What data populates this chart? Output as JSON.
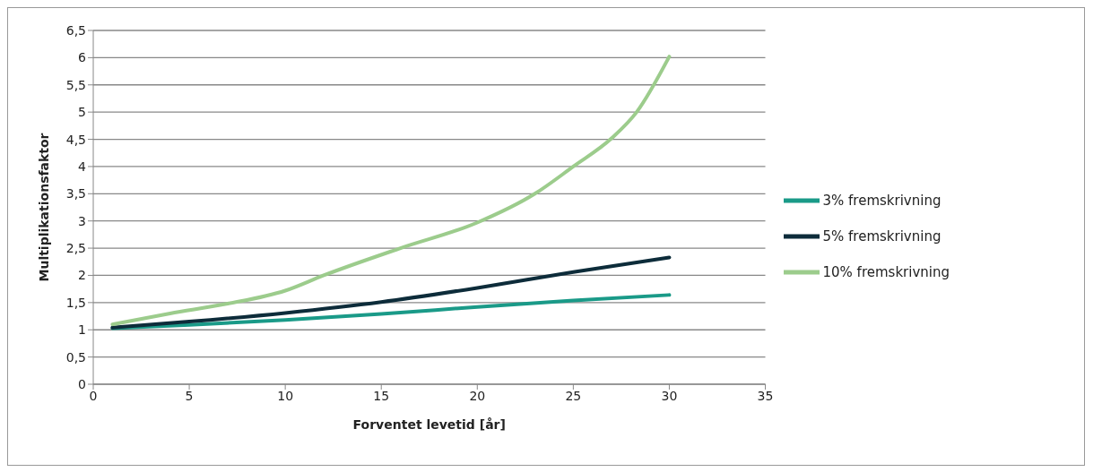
{
  "chart_data": {
    "type": "line",
    "xlabel": "Forventet levetid [år]",
    "ylabel": "Multiplikationsfaktor",
    "xlim": [
      0,
      35
    ],
    "xticks": [
      0,
      5,
      10,
      15,
      20,
      25,
      30,
      35
    ],
    "ylim": [
      0,
      6.5
    ],
    "yticks": [
      0,
      {
        "value": 0.5,
        "label": "0,5"
      },
      1,
      {
        "value": 1.5,
        "label": "1,5"
      },
      2,
      {
        "value": 2.5,
        "label": "2,5"
      },
      3,
      {
        "value": 3.5,
        "label": "3,5"
      },
      4,
      {
        "value": 4.5,
        "label": "4,5"
      },
      5,
      {
        "value": 5.5,
        "label": "5,5"
      },
      6,
      {
        "value": 6.5,
        "label": "6,5"
      }
    ],
    "grid": "y",
    "legend": "right",
    "marker": "none",
    "line_style": "solid",
    "series": [
      {
        "name": "3% fremskrivning",
        "color": "#1a9a88",
        "x": [
          1,
          5,
          10,
          15,
          20,
          25,
          30
        ],
        "values": [
          1.03,
          1.09,
          1.18,
          1.29,
          1.42,
          1.54,
          1.64
        ]
      },
      {
        "name": "5% fremskrivning",
        "color": "#0d2c3a",
        "x": [
          1,
          5,
          10,
          15,
          20,
          25,
          30
        ],
        "values": [
          1.04,
          1.15,
          1.31,
          1.51,
          1.77,
          2.06,
          2.33
        ]
      },
      {
        "name": "10% fremskrivning",
        "color": "#9ccc8c",
        "x": [
          1,
          4,
          7,
          10,
          12,
          16,
          20,
          23,
          25,
          27,
          28.3,
          30
        ],
        "values": [
          1.1,
          1.3,
          1.48,
          1.72,
          2.0,
          2.5,
          2.97,
          3.5,
          4.0,
          4.52,
          5.0,
          6.02
        ]
      }
    ]
  }
}
